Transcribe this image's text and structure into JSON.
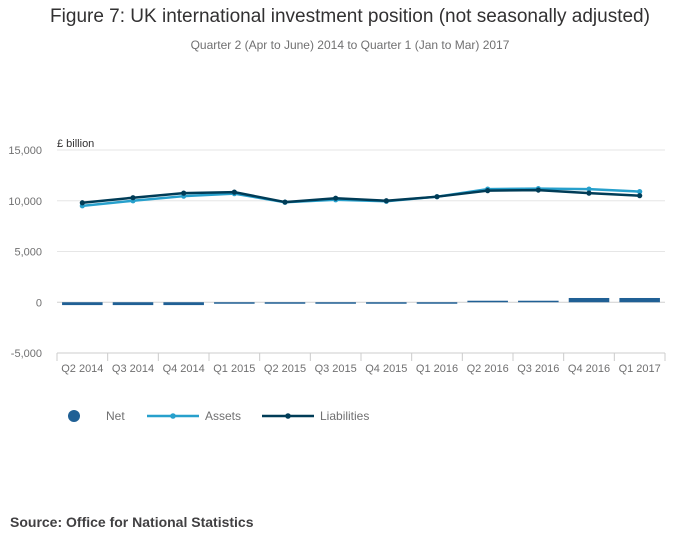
{
  "chart_data": {
    "type": "bar+line",
    "title": "Figure 7: UK international investment position (not seasonally adjusted)",
    "subtitle": "Quarter 2 (Apr to June) 2014 to Quarter 1 (Jan to Mar) 2017",
    "ylabel": "£ billion",
    "xlabel": "",
    "ylim": [
      -5000,
      15000
    ],
    "yticks": [
      15000,
      10000,
      5000,
      0,
      -5000
    ],
    "ytick_labels": [
      "15,000",
      "10,000",
      "5,000",
      "0",
      "-5,000"
    ],
    "categories": [
      "Q2 2014",
      "Q3 2014",
      "Q4 2014",
      "Q1 2015",
      "Q2 2015",
      "Q3 2015",
      "Q4 2015",
      "Q1 2016",
      "Q2 2016",
      "Q3 2016",
      "Q4 2016",
      "Q1 2017"
    ],
    "series": [
      {
        "name": "Net",
        "kind": "bar",
        "color": "#206095",
        "values": [
          -280,
          -280,
          -280,
          -130,
          -20,
          -130,
          -20,
          -70,
          150,
          150,
          420,
          420
        ]
      },
      {
        "name": "Assets",
        "kind": "line",
        "color": "#27a0cc",
        "values": [
          9500,
          10000,
          10450,
          10700,
          9850,
          10100,
          9950,
          10400,
          11150,
          11200,
          11150,
          10900
        ]
      },
      {
        "name": "Liabilities",
        "kind": "line",
        "color": "#003c57",
        "values": [
          9800,
          10300,
          10750,
          10850,
          9870,
          10250,
          10000,
          10400,
          11000,
          11050,
          10750,
          10500
        ]
      }
    ],
    "legend_position": "bottom-left",
    "grid": true
  },
  "source": "Source: Office for National Statistics"
}
